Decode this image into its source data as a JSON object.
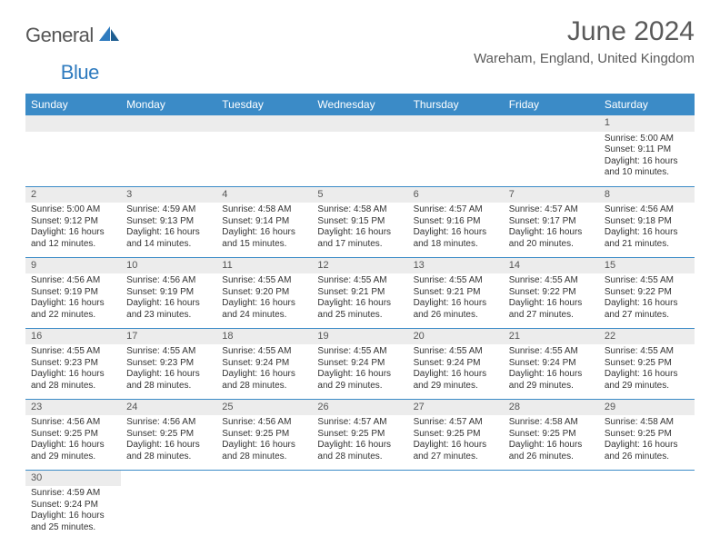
{
  "logo": {
    "part1": "General",
    "part2": "Blue"
  },
  "title": "June 2024",
  "location": "Wareham, England, United Kingdom",
  "colors": {
    "header_bg": "#3b8bc7",
    "header_text": "#ffffff",
    "dayheader_bg": "#ececec",
    "cell_border": "#3b8bc7",
    "body_text": "#333333",
    "logo_dark": "#555555",
    "logo_blue": "#2f7bbf"
  },
  "typography": {
    "title_fontsize": 30,
    "location_fontsize": 15,
    "weekday_fontsize": 12,
    "daynum_fontsize": 11,
    "body_fontsize": 10
  },
  "weekdays": [
    "Sunday",
    "Monday",
    "Tuesday",
    "Wednesday",
    "Thursday",
    "Friday",
    "Saturday"
  ],
  "weeks": [
    [
      null,
      null,
      null,
      null,
      null,
      null,
      {
        "n": "1",
        "sr": "Sunrise: 5:00 AM",
        "ss": "Sunset: 9:11 PM",
        "d1": "Daylight: 16 hours",
        "d2": "and 10 minutes."
      }
    ],
    [
      {
        "n": "2",
        "sr": "Sunrise: 5:00 AM",
        "ss": "Sunset: 9:12 PM",
        "d1": "Daylight: 16 hours",
        "d2": "and 12 minutes."
      },
      {
        "n": "3",
        "sr": "Sunrise: 4:59 AM",
        "ss": "Sunset: 9:13 PM",
        "d1": "Daylight: 16 hours",
        "d2": "and 14 minutes."
      },
      {
        "n": "4",
        "sr": "Sunrise: 4:58 AM",
        "ss": "Sunset: 9:14 PM",
        "d1": "Daylight: 16 hours",
        "d2": "and 15 minutes."
      },
      {
        "n": "5",
        "sr": "Sunrise: 4:58 AM",
        "ss": "Sunset: 9:15 PM",
        "d1": "Daylight: 16 hours",
        "d2": "and 17 minutes."
      },
      {
        "n": "6",
        "sr": "Sunrise: 4:57 AM",
        "ss": "Sunset: 9:16 PM",
        "d1": "Daylight: 16 hours",
        "d2": "and 18 minutes."
      },
      {
        "n": "7",
        "sr": "Sunrise: 4:57 AM",
        "ss": "Sunset: 9:17 PM",
        "d1": "Daylight: 16 hours",
        "d2": "and 20 minutes."
      },
      {
        "n": "8",
        "sr": "Sunrise: 4:56 AM",
        "ss": "Sunset: 9:18 PM",
        "d1": "Daylight: 16 hours",
        "d2": "and 21 minutes."
      }
    ],
    [
      {
        "n": "9",
        "sr": "Sunrise: 4:56 AM",
        "ss": "Sunset: 9:19 PM",
        "d1": "Daylight: 16 hours",
        "d2": "and 22 minutes."
      },
      {
        "n": "10",
        "sr": "Sunrise: 4:56 AM",
        "ss": "Sunset: 9:19 PM",
        "d1": "Daylight: 16 hours",
        "d2": "and 23 minutes."
      },
      {
        "n": "11",
        "sr": "Sunrise: 4:55 AM",
        "ss": "Sunset: 9:20 PM",
        "d1": "Daylight: 16 hours",
        "d2": "and 24 minutes."
      },
      {
        "n": "12",
        "sr": "Sunrise: 4:55 AM",
        "ss": "Sunset: 9:21 PM",
        "d1": "Daylight: 16 hours",
        "d2": "and 25 minutes."
      },
      {
        "n": "13",
        "sr": "Sunrise: 4:55 AM",
        "ss": "Sunset: 9:21 PM",
        "d1": "Daylight: 16 hours",
        "d2": "and 26 minutes."
      },
      {
        "n": "14",
        "sr": "Sunrise: 4:55 AM",
        "ss": "Sunset: 9:22 PM",
        "d1": "Daylight: 16 hours",
        "d2": "and 27 minutes."
      },
      {
        "n": "15",
        "sr": "Sunrise: 4:55 AM",
        "ss": "Sunset: 9:22 PM",
        "d1": "Daylight: 16 hours",
        "d2": "and 27 minutes."
      }
    ],
    [
      {
        "n": "16",
        "sr": "Sunrise: 4:55 AM",
        "ss": "Sunset: 9:23 PM",
        "d1": "Daylight: 16 hours",
        "d2": "and 28 minutes."
      },
      {
        "n": "17",
        "sr": "Sunrise: 4:55 AM",
        "ss": "Sunset: 9:23 PM",
        "d1": "Daylight: 16 hours",
        "d2": "and 28 minutes."
      },
      {
        "n": "18",
        "sr": "Sunrise: 4:55 AM",
        "ss": "Sunset: 9:24 PM",
        "d1": "Daylight: 16 hours",
        "d2": "and 28 minutes."
      },
      {
        "n": "19",
        "sr": "Sunrise: 4:55 AM",
        "ss": "Sunset: 9:24 PM",
        "d1": "Daylight: 16 hours",
        "d2": "and 29 minutes."
      },
      {
        "n": "20",
        "sr": "Sunrise: 4:55 AM",
        "ss": "Sunset: 9:24 PM",
        "d1": "Daylight: 16 hours",
        "d2": "and 29 minutes."
      },
      {
        "n": "21",
        "sr": "Sunrise: 4:55 AM",
        "ss": "Sunset: 9:24 PM",
        "d1": "Daylight: 16 hours",
        "d2": "and 29 minutes."
      },
      {
        "n": "22",
        "sr": "Sunrise: 4:55 AM",
        "ss": "Sunset: 9:25 PM",
        "d1": "Daylight: 16 hours",
        "d2": "and 29 minutes."
      }
    ],
    [
      {
        "n": "23",
        "sr": "Sunrise: 4:56 AM",
        "ss": "Sunset: 9:25 PM",
        "d1": "Daylight: 16 hours",
        "d2": "and 29 minutes."
      },
      {
        "n": "24",
        "sr": "Sunrise: 4:56 AM",
        "ss": "Sunset: 9:25 PM",
        "d1": "Daylight: 16 hours",
        "d2": "and 28 minutes."
      },
      {
        "n": "25",
        "sr": "Sunrise: 4:56 AM",
        "ss": "Sunset: 9:25 PM",
        "d1": "Daylight: 16 hours",
        "d2": "and 28 minutes."
      },
      {
        "n": "26",
        "sr": "Sunrise: 4:57 AM",
        "ss": "Sunset: 9:25 PM",
        "d1": "Daylight: 16 hours",
        "d2": "and 28 minutes."
      },
      {
        "n": "27",
        "sr": "Sunrise: 4:57 AM",
        "ss": "Sunset: 9:25 PM",
        "d1": "Daylight: 16 hours",
        "d2": "and 27 minutes."
      },
      {
        "n": "28",
        "sr": "Sunrise: 4:58 AM",
        "ss": "Sunset: 9:25 PM",
        "d1": "Daylight: 16 hours",
        "d2": "and 26 minutes."
      },
      {
        "n": "29",
        "sr": "Sunrise: 4:58 AM",
        "ss": "Sunset: 9:25 PM",
        "d1": "Daylight: 16 hours",
        "d2": "and 26 minutes."
      }
    ],
    [
      {
        "n": "30",
        "sr": "Sunrise: 4:59 AM",
        "ss": "Sunset: 9:24 PM",
        "d1": "Daylight: 16 hours",
        "d2": "and 25 minutes."
      },
      null,
      null,
      null,
      null,
      null,
      null
    ]
  ]
}
